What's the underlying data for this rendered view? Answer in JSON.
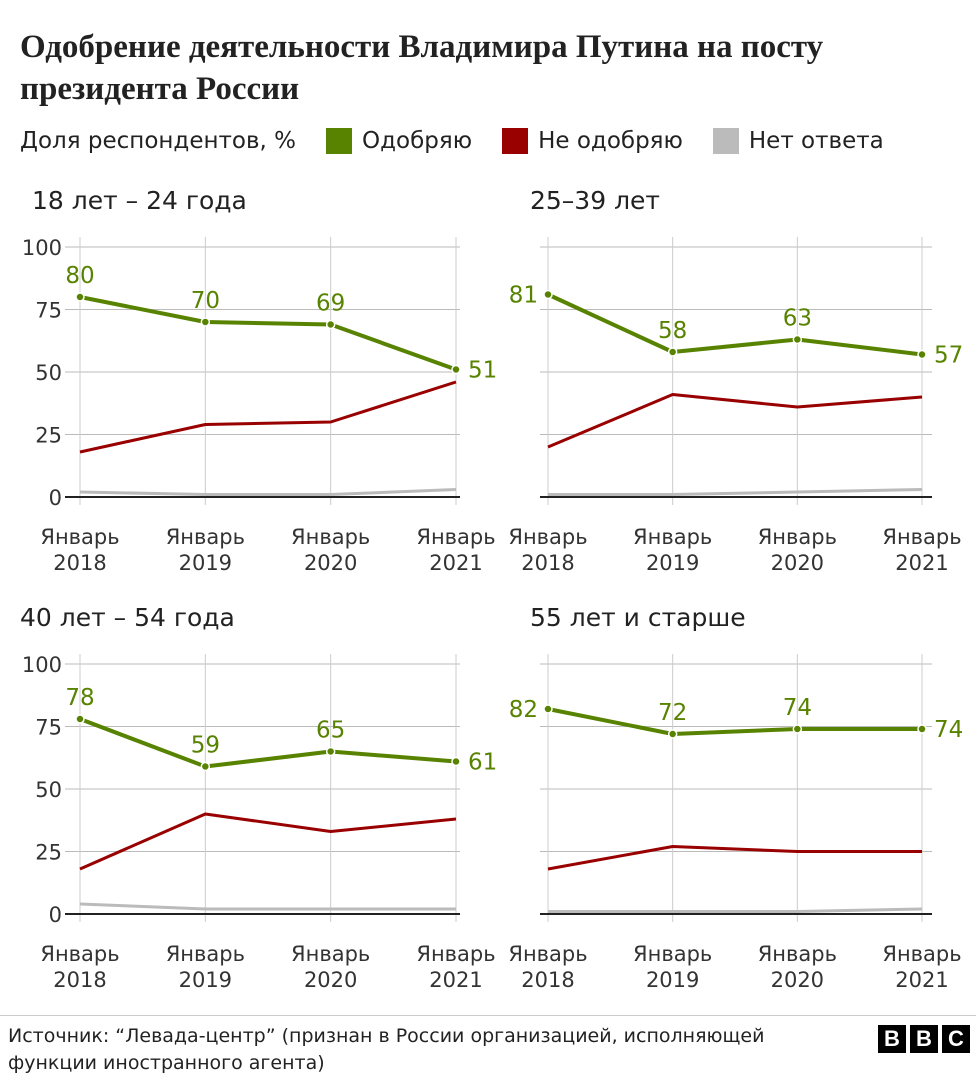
{
  "title": "Одобрение деятельности Владимира Путина на посту президента России",
  "legend": {
    "label": "Доля респондентов, %",
    "items": [
      {
        "name": "Одобряю",
        "color": "#588300"
      },
      {
        "name": "Не одобряю",
        "color": "#990000"
      },
      {
        "name": "Нет ответа",
        "color": "#bbbbbb"
      }
    ]
  },
  "source": "Источник: “Левада-центр” (признан в России организацией, исполняющей функции иностранного агента)",
  "logo": "BBC",
  "chart_data": [
    {
      "type": "line",
      "title": "18 лет – 24 года",
      "categories": [
        [
          "Январь",
          "2018"
        ],
        [
          "Январь",
          "2019"
        ],
        [
          "Январь",
          "2020"
        ],
        [
          "Январь",
          "2021"
        ]
      ],
      "yticks": [
        "0",
        "25",
        "50",
        "75",
        "100"
      ],
      "ylim": [
        0,
        100
      ],
      "series": [
        {
          "name": "Одобряю",
          "values": [
            80,
            70,
            69,
            51
          ],
          "labels": [
            "80",
            "70",
            "69",
            "51"
          ]
        },
        {
          "name": "Не одобряю",
          "values": [
            18,
            29,
            30,
            46
          ]
        },
        {
          "name": "Нет ответа",
          "values": [
            2,
            1,
            1,
            3
          ]
        }
      ]
    },
    {
      "type": "line",
      "title": "25–39 лет",
      "categories": [
        [
          "Январь",
          "2018"
        ],
        [
          "Январь",
          "2019"
        ],
        [
          "Январь",
          "2020"
        ],
        [
          "Январь",
          "2021"
        ]
      ],
      "yticks": [],
      "ylim": [
        0,
        100
      ],
      "series": [
        {
          "name": "Одобряю",
          "values": [
            81,
            58,
            63,
            57
          ],
          "labels": [
            "81",
            "58",
            "63",
            "57"
          ]
        },
        {
          "name": "Не одобряю",
          "values": [
            20,
            41,
            36,
            40
          ]
        },
        {
          "name": "Нет ответа",
          "values": [
            1,
            1,
            2,
            3
          ]
        }
      ]
    },
    {
      "type": "line",
      "title": "40 лет – 54 года",
      "categories": [
        [
          "Январь",
          "2018"
        ],
        [
          "Январь",
          "2019"
        ],
        [
          "Январь",
          "2020"
        ],
        [
          "Январь",
          "2021"
        ]
      ],
      "yticks": [
        "0",
        "25",
        "50",
        "75",
        "100"
      ],
      "ylim": [
        0,
        100
      ],
      "series": [
        {
          "name": "Одобряю",
          "values": [
            78,
            59,
            65,
            61
          ],
          "labels": [
            "78",
            "59",
            "65",
            "61"
          ]
        },
        {
          "name": "Не одобряю",
          "values": [
            18,
            40,
            33,
            38
          ]
        },
        {
          "name": "Нет ответа",
          "values": [
            4,
            2,
            2,
            2
          ]
        }
      ]
    },
    {
      "type": "line",
      "title": "55 лет и старше",
      "categories": [
        [
          "Январь",
          "2018"
        ],
        [
          "Январь",
          "2019"
        ],
        [
          "Январь",
          "2020"
        ],
        [
          "Январь",
          "2021"
        ]
      ],
      "yticks": [],
      "ylim": [
        0,
        100
      ],
      "series": [
        {
          "name": "Одобряю",
          "values": [
            82,
            72,
            74,
            74
          ],
          "labels": [
            "82",
            "72",
            "74",
            "74"
          ]
        },
        {
          "name": "Не одобряю",
          "values": [
            18,
            27,
            25,
            25
          ]
        },
        {
          "name": "Нет ответа",
          "values": [
            1,
            1,
            1,
            2
          ]
        }
      ]
    }
  ]
}
